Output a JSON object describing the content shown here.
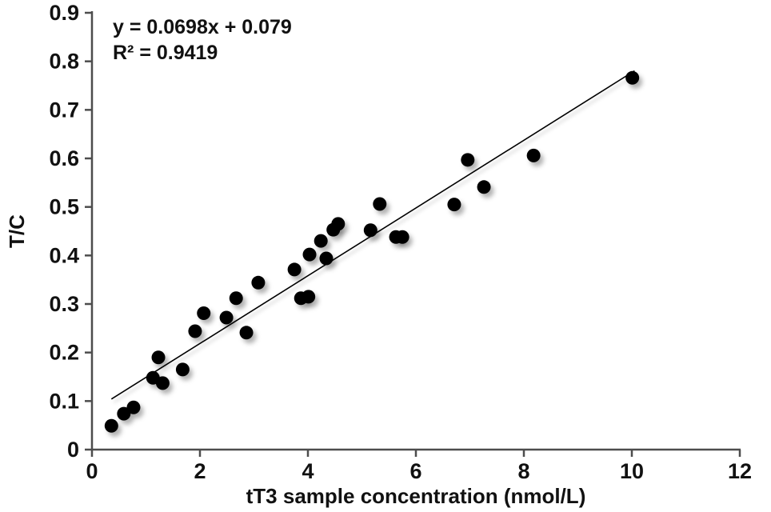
{
  "chart_data": {
    "type": "scatter",
    "title": "",
    "xlabel": "tT3 sample concentration (nmol/L)",
    "ylabel": "T/C",
    "xlim": [
      0,
      12
    ],
    "ylim": [
      0,
      0.9
    ],
    "x_ticks": [
      0,
      2,
      4,
      6,
      8,
      10,
      12
    ],
    "y_ticks": [
      0,
      0.1,
      0.2,
      0.3,
      0.4,
      0.5,
      0.6,
      0.7,
      0.8,
      0.9
    ],
    "grid": false,
    "legend": "none",
    "axis_color": "#4d4d4d",
    "marker": {
      "shape": "circle",
      "color": "#000000"
    },
    "annotations": [
      "y = 0.0698x + 0.079",
      "R² = 0.9419"
    ],
    "trendline": {
      "type": "linear",
      "slope": 0.0698,
      "intercept": 0.079,
      "r_squared": 0.9419,
      "x_start": 0.36,
      "x_end": 10.05,
      "color": "#000000"
    },
    "points": [
      [
        0.36,
        0.049
      ],
      [
        0.59,
        0.074
      ],
      [
        0.77,
        0.087
      ],
      [
        1.13,
        0.148
      ],
      [
        1.23,
        0.19
      ],
      [
        1.31,
        0.137
      ],
      [
        1.68,
        0.165
      ],
      [
        1.91,
        0.244
      ],
      [
        2.07,
        0.281
      ],
      [
        2.49,
        0.272
      ],
      [
        2.67,
        0.312
      ],
      [
        2.86,
        0.241
      ],
      [
        3.08,
        0.344
      ],
      [
        3.75,
        0.371
      ],
      [
        3.87,
        0.312
      ],
      [
        4.01,
        0.315
      ],
      [
        4.03,
        0.402
      ],
      [
        4.24,
        0.43
      ],
      [
        4.34,
        0.394
      ],
      [
        4.47,
        0.453
      ],
      [
        4.56,
        0.465
      ],
      [
        5.16,
        0.452
      ],
      [
        5.33,
        0.506
      ],
      [
        5.63,
        0.438
      ],
      [
        5.75,
        0.438
      ],
      [
        6.71,
        0.505
      ],
      [
        6.96,
        0.597
      ],
      [
        7.26,
        0.541
      ],
      [
        8.18,
        0.606
      ],
      [
        10.01,
        0.766
      ]
    ]
  }
}
